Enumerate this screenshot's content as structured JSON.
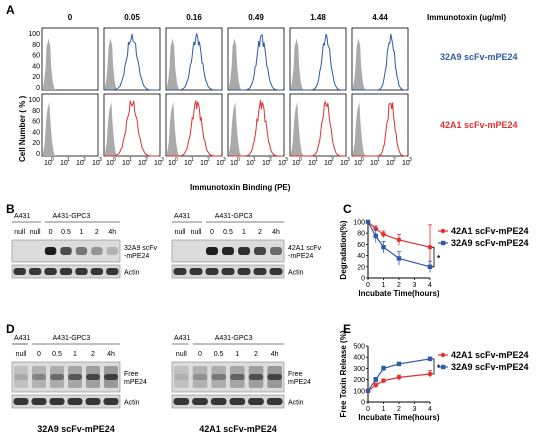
{
  "panel_letters": [
    "A",
    "B",
    "C",
    "D",
    "E"
  ],
  "panelA": {
    "columns": [
      "0",
      "0.05",
      "0.16",
      "0.49",
      "1.48",
      "4.44"
    ],
    "concentration_label": "Immunotoxin (ug/ml)",
    "y_label": "Cell Number ( % )",
    "x_label": "Immunotoxin Binding (PE)",
    "y_ticks": [
      "100",
      "80",
      "60",
      "40",
      "20",
      "0"
    ],
    "x_ticks": [
      "0",
      "1",
      "2",
      "3"
    ],
    "x_tick_base": "10",
    "rows": [
      {
        "legend": "32A9 scFv-mPE24",
        "color": "#2e5aa8"
      },
      {
        "legend": "42A1 scFv-mPE24",
        "color": "#e03030"
      }
    ]
  },
  "panelB": {
    "blots": [
      {
        "a431": "A431",
        "gpc3": "A431-GPC3",
        "lanes": [
          "null",
          "null",
          "0",
          "0.5",
          "1",
          "2",
          "4h"
        ],
        "label1": "32A9 scFv",
        "label2": "-mPE24",
        "actin": "Actin"
      },
      {
        "a431": "A431",
        "gpc3": "A431-GPC3",
        "lanes": [
          "null",
          "null",
          "0",
          "0.5",
          "1",
          "2",
          "4h"
        ],
        "label1": "42A1 scFv",
        "label2": "-mPE24",
        "actin": "Actin"
      }
    ]
  },
  "panelD": {
    "blots": [
      {
        "a431": "A431",
        "gpc3": "A431-GPC3",
        "lanes": [
          "null",
          "0",
          "0.5",
          "1",
          "2",
          "4h"
        ],
        "label1": "Free",
        "label2": "mPE24",
        "actin": "Actin",
        "caption": "32A9 scFv-mPE24"
      },
      {
        "a431": "A431",
        "gpc3": "A431-GPC3",
        "lanes": [
          "null",
          "0",
          "0.5",
          "1",
          "2",
          "4h"
        ],
        "label1": "Free",
        "label2": "mPE24",
        "actin": "Actin",
        "caption": "42A1 scFv-mPE24"
      }
    ]
  },
  "chart_data": [
    {
      "type": "line",
      "panel": "C",
      "ylabel": "Degradation(%)",
      "xlabel": "Incubate Time(hours)",
      "x_ticks": [
        "0",
        "1",
        "2",
        "3",
        "4"
      ],
      "y_ticks": [
        "0",
        "20",
        "40",
        "60",
        "80",
        "100"
      ],
      "xlim": [
        0,
        4
      ],
      "ylim": [
        0,
        100
      ],
      "significance": "*",
      "series": [
        {
          "name": "42A1 scFv-mPE24",
          "color": "#e03030",
          "x": [
            0,
            0.5,
            1,
            2,
            4
          ],
          "y": [
            100,
            88,
            78,
            68,
            55
          ],
          "err": [
            3,
            5,
            6,
            10,
            40
          ]
        },
        {
          "name": "32A9 scFv-mPE24",
          "color": "#2e5aa8",
          "x": [
            0,
            0.5,
            1,
            2,
            4
          ],
          "y": [
            100,
            75,
            55,
            35,
            20
          ],
          "err": [
            3,
            12,
            10,
            12,
            10
          ]
        }
      ]
    },
    {
      "type": "line",
      "panel": "E",
      "ylabel": "Free Toxin Release (%)",
      "xlabel": "Incubate Time(hours)",
      "x_ticks": [
        "0",
        "1",
        "2",
        "3",
        "4"
      ],
      "y_ticks": [
        "0",
        "100",
        "200",
        "300",
        "400",
        "500"
      ],
      "xlim": [
        0,
        4
      ],
      "ylim": [
        0,
        500
      ],
      "significance": "*",
      "series": [
        {
          "name": "42A1 scFv-mPE24",
          "color": "#e03030",
          "x": [
            0,
            0.5,
            1,
            2,
            4
          ],
          "y": [
            100,
            150,
            190,
            220,
            250
          ],
          "err": [
            5,
            20,
            15,
            20,
            30
          ]
        },
        {
          "name": "32A9 scFv-mPE24",
          "color": "#2e5aa8",
          "x": [
            0,
            0.5,
            1,
            2,
            4
          ],
          "y": [
            100,
            200,
            300,
            340,
            385
          ],
          "err": [
            5,
            20,
            20,
            15,
            15
          ]
        }
      ]
    }
  ]
}
